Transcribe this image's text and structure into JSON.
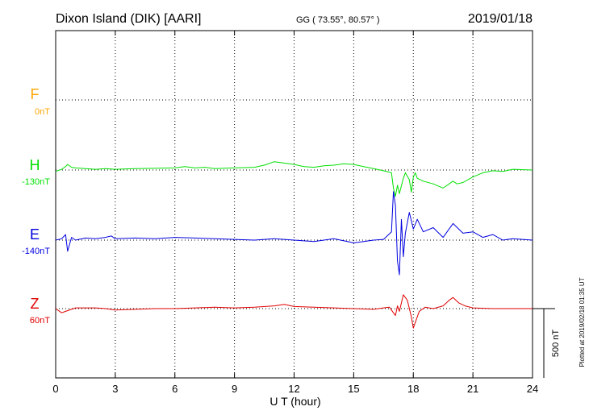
{
  "header": {
    "station": "Dixon Island (DIK)  [AARI]",
    "coords": "GG ( 73.55°,  80.57° )",
    "date": "2019/01/18"
  },
  "footer": {
    "xlabel": "U T (hour)",
    "plotted_note": "Plotted at 2019/02/18 01:35 UT",
    "scale_label": "500 nT"
  },
  "colors": {
    "F": "#ffa500",
    "H": "#00e000",
    "E": "#0000e0",
    "Z": "#e00000",
    "grid": "#000000",
    "frame": "#000000"
  },
  "chart_data": {
    "type": "line",
    "title": "Dixon Island (DIK)  [AARI]",
    "xlabel": "U T (hour)",
    "xlim": [
      0,
      24
    ],
    "x_ticks": [
      0,
      3,
      6,
      9,
      12,
      15,
      18,
      21,
      24
    ],
    "x_tick_labels": [
      "0",
      "3",
      "6",
      "9",
      "12",
      "15",
      "18",
      "21",
      "24"
    ],
    "grid": true,
    "y_units": "nT",
    "y_scale_bar_nT": 500,
    "series": [
      {
        "name": "F",
        "baseline_label": "0nT",
        "x": [],
        "y": []
      },
      {
        "name": "H",
        "baseline_label": "-130nT",
        "x": [
          0,
          0.3,
          0.5,
          0.6,
          0.8,
          1,
          1.5,
          2,
          2.5,
          3,
          4,
          5,
          6,
          6.5,
          7,
          7.5,
          8,
          9,
          10,
          10.5,
          11,
          11.5,
          12,
          12.5,
          13,
          13.5,
          14,
          14.5,
          15,
          15.5,
          16,
          16.5,
          16.9,
          17.0,
          17.1,
          17.2,
          17.3,
          17.5,
          17.6,
          17.8,
          17.9,
          18,
          18.1,
          18.2,
          18.5,
          19,
          19.5,
          20,
          20.2,
          20.5,
          21,
          21.5,
          22,
          22.5,
          23,
          24
        ],
        "y": [
          -10,
          5,
          25,
          40,
          20,
          15,
          10,
          5,
          10,
          5,
          10,
          12,
          15,
          25,
          15,
          20,
          10,
          15,
          20,
          35,
          60,
          50,
          40,
          25,
          20,
          30,
          35,
          45,
          40,
          25,
          10,
          -5,
          -20,
          -130,
          -190,
          -110,
          -170,
          -60,
          -20,
          -70,
          -160,
          -50,
          -20,
          -60,
          -80,
          -100,
          -130,
          -80,
          -100,
          -90,
          -50,
          -20,
          -5,
          -10,
          5,
          0
        ]
      },
      {
        "name": "E",
        "baseline_label": "-140nT",
        "x": [
          0,
          0.3,
          0.5,
          0.6,
          0.8,
          1,
          1.5,
          2,
          2.5,
          2.8,
          3,
          4,
          5,
          6,
          7,
          8,
          9,
          10,
          11,
          12,
          13,
          14,
          15,
          15.5,
          16,
          16.5,
          16.9,
          17.0,
          17.1,
          17.2,
          17.3,
          17.4,
          17.5,
          17.6,
          17.8,
          18.0,
          18.2,
          18.5,
          19,
          19.5,
          20,
          20.5,
          21,
          21.5,
          22,
          22.5,
          23,
          24
        ],
        "y": [
          0,
          10,
          40,
          -80,
          20,
          0,
          15,
          10,
          20,
          30,
          10,
          15,
          10,
          20,
          15,
          10,
          5,
          0,
          10,
          0,
          -10,
          10,
          -20,
          -10,
          0,
          5,
          60,
          350,
          250,
          -150,
          -250,
          150,
          -120,
          50,
          200,
          80,
          150,
          60,
          90,
          20,
          120,
          50,
          60,
          20,
          40,
          0,
          10,
          0
        ]
      },
      {
        "name": "Z",
        "baseline_label": "60nT",
        "x": [
          0,
          0.3,
          0.5,
          1,
          1.5,
          2,
          2.5,
          3,
          4,
          5,
          6,
          7,
          8,
          9,
          10,
          11,
          11.5,
          12,
          13,
          14,
          15,
          16,
          16.5,
          16.8,
          17.0,
          17.1,
          17.2,
          17.3,
          17.5,
          17.7,
          17.9,
          18.0,
          18.1,
          18.3,
          18.6,
          19,
          19.5,
          19.8,
          20,
          20.3,
          20.6,
          21,
          22,
          23,
          24
        ],
        "y": [
          0,
          -30,
          -20,
          5,
          5,
          5,
          0,
          -10,
          -5,
          0,
          0,
          5,
          10,
          5,
          10,
          20,
          30,
          15,
          10,
          5,
          0,
          -5,
          5,
          10,
          -30,
          -50,
          20,
          -20,
          100,
          60,
          -60,
          -140,
          -100,
          -20,
          10,
          0,
          20,
          60,
          80,
          40,
          20,
          5,
          0,
          0,
          0
        ]
      }
    ]
  }
}
